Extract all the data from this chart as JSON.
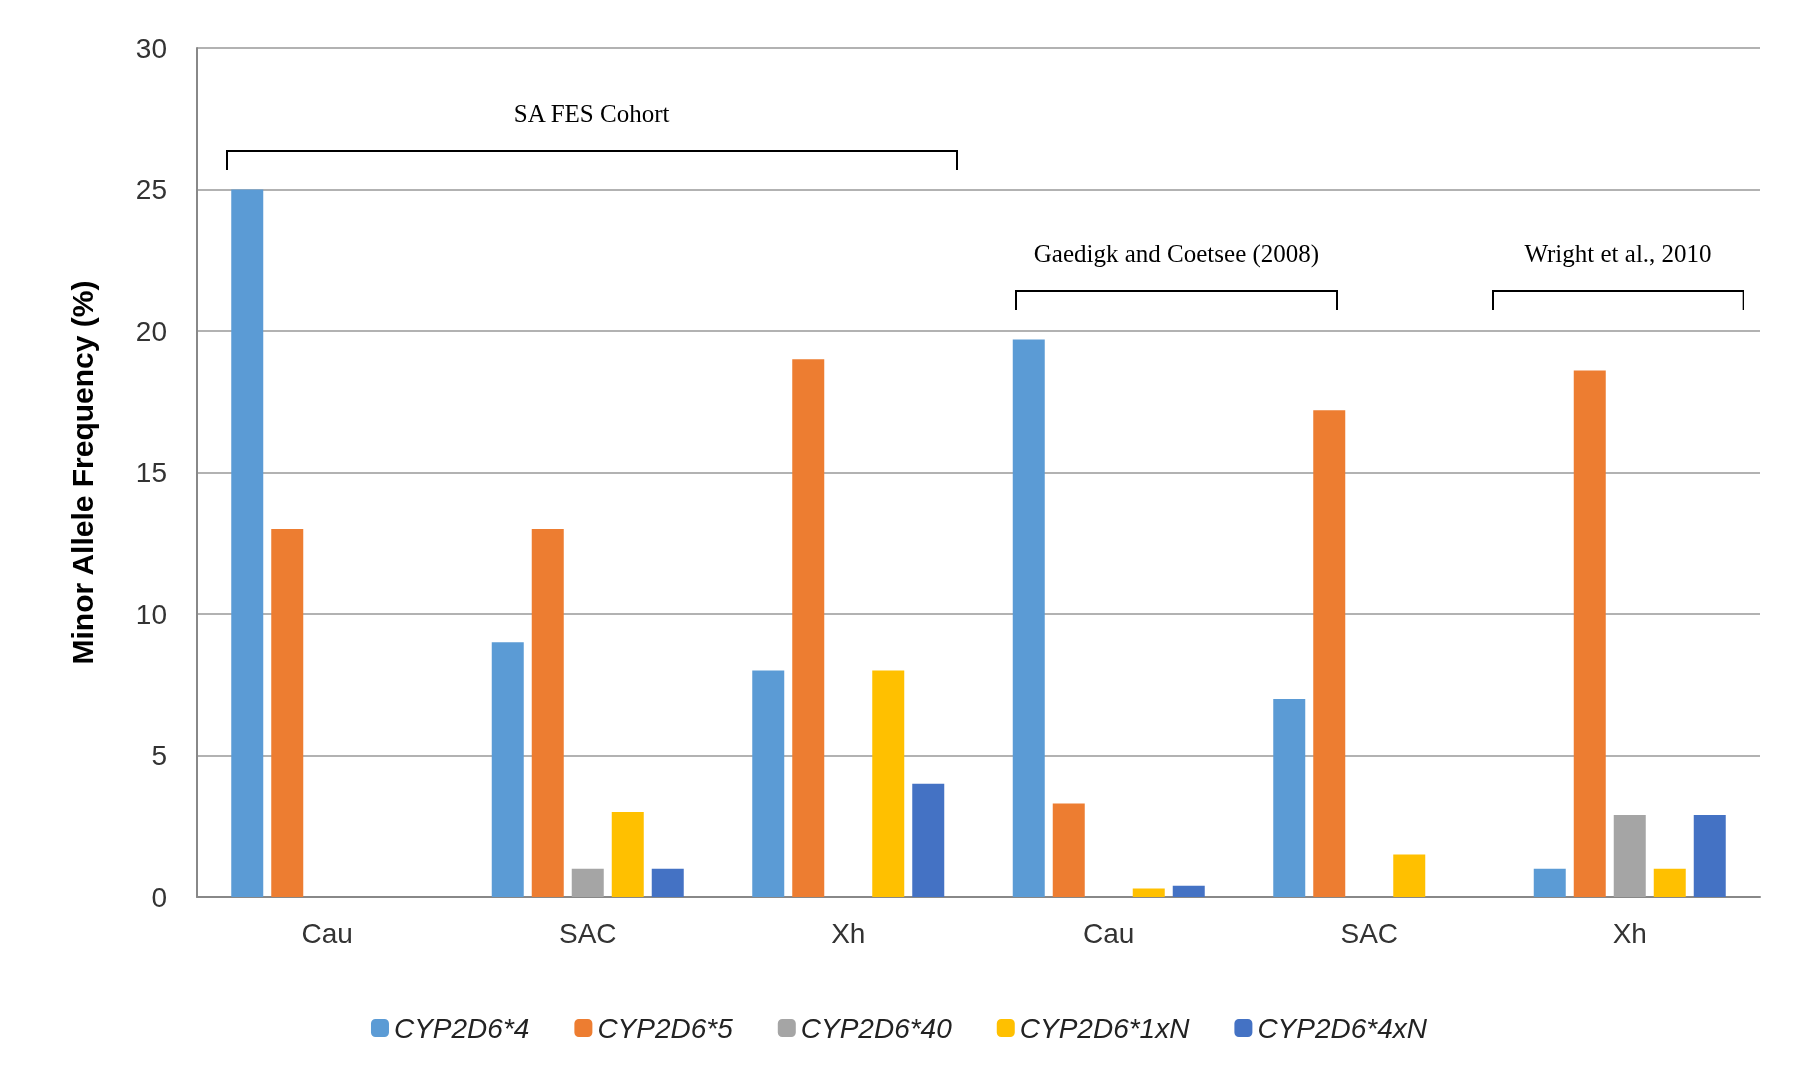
{
  "chart_data": {
    "type": "bar",
    "ylabel": "Minor Allele Frequency (%)",
    "categories": [
      "Cau",
      "SAC",
      "Xh",
      "Cau",
      "SAC",
      "Xh"
    ],
    "series": [
      {
        "name": "CYP2D6*4",
        "color": "#5b9bd5",
        "values": [
          25,
          9,
          8,
          19.7,
          7,
          1
        ]
      },
      {
        "name": "CYP2D6*5",
        "color": "#ed7d31",
        "values": [
          13,
          13,
          19,
          3.3,
          17.2,
          18.6
        ]
      },
      {
        "name": "CYP2D6*40",
        "color": "#a5a5a5",
        "values": [
          0,
          1,
          0,
          0,
          0,
          2.9
        ]
      },
      {
        "name": "CYP2D6*1xN",
        "color": "#ffc000",
        "values": [
          0,
          3,
          8,
          0.3,
          1.5,
          1
        ]
      },
      {
        "name": "CYP2D6*4xN",
        "color": "#4472c4",
        "values": [
          0,
          1,
          4,
          0.4,
          0,
          2.9
        ]
      }
    ],
    "ylim": [
      0,
      30
    ],
    "yticks": [
      0,
      5,
      10,
      15,
      20,
      25,
      30
    ],
    "grid": "y",
    "legend": "bottom",
    "annotations": [
      "SA FES Cohort",
      "Gaedigk and Coetsee (2008)",
      "Wright et al., 2010"
    ]
  }
}
